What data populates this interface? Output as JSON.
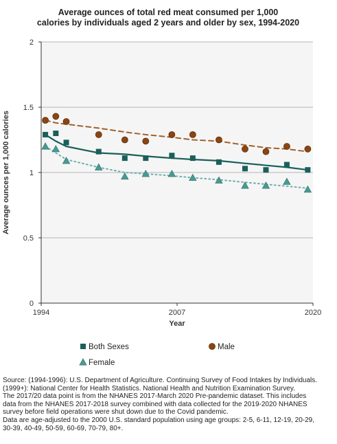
{
  "title_lines": [
    "Average ounces of total red meat consumed per 1,000",
    "calories by individuals aged 2 years and older by sex, 1994-2020"
  ],
  "colors": {
    "background_plot": "#f5f5f5",
    "gridline": "#b5b5b5",
    "axis": "#333333",
    "both_sexes": "#1a5f5a",
    "male_marker": "#8b4513",
    "male_line": "#a0612a",
    "female_marker": "#4a9a94",
    "female_line": "#6fb0aa"
  },
  "chart_data": {
    "type": "line",
    "xlabel": "Year",
    "ylabel": "Average ounces per 1,000 calories",
    "xlim": [
      1994,
      2020
    ],
    "ylim": [
      0,
      2
    ],
    "x_ticks": [
      1994,
      2007,
      2020
    ],
    "y_ticks": [
      0,
      0.5,
      1,
      1.5,
      2
    ],
    "y_tick_labels": [
      "0",
      "0.5",
      "1",
      "1.5",
      "2"
    ],
    "grid": true,
    "legend_position": "bottom",
    "series": [
      {
        "name": "Both Sexes",
        "marker": "square",
        "line_style": "solid",
        "x": [
          1994.4,
          1995.4,
          1996.4,
          1999.5,
          2002.0,
          2004.0,
          2006.5,
          2008.5,
          2011.0,
          2013.5,
          2015.5,
          2017.5,
          2019.5
        ],
        "values": [
          1.29,
          1.3,
          1.23,
          1.16,
          1.11,
          1.11,
          1.13,
          1.11,
          1.08,
          1.03,
          1.02,
          1.06,
          1.02
        ],
        "trend": [
          1.29,
          1.24,
          1.2,
          1.15,
          1.14,
          1.125,
          1.11,
          1.1,
          1.09,
          1.07,
          1.055,
          1.04,
          1.02
        ]
      },
      {
        "name": "Male",
        "marker": "circle",
        "line_style": "dashed",
        "x": [
          1994.4,
          1995.4,
          1996.4,
          1999.5,
          2002.0,
          2004.0,
          2006.5,
          2008.5,
          2011.0,
          2013.5,
          2015.5,
          2017.5,
          2019.5
        ],
        "values": [
          1.4,
          1.43,
          1.39,
          1.29,
          1.25,
          1.24,
          1.29,
          1.29,
          1.25,
          1.18,
          1.16,
          1.2,
          1.18
        ],
        "trend": [
          1.4,
          1.38,
          1.37,
          1.34,
          1.31,
          1.29,
          1.27,
          1.25,
          1.24,
          1.21,
          1.19,
          1.18,
          1.16
        ]
      },
      {
        "name": "Female",
        "marker": "triangle",
        "line_style": "dotted",
        "x": [
          1994.4,
          1995.4,
          1996.4,
          1999.5,
          2002.0,
          2004.0,
          2006.5,
          2008.5,
          2011.0,
          2013.5,
          2015.5,
          2017.5,
          2019.5
        ],
        "values": [
          1.2,
          1.18,
          1.09,
          1.04,
          0.97,
          0.99,
          0.99,
          0.96,
          0.94,
          0.9,
          0.9,
          0.93,
          0.87
        ],
        "trend": [
          1.2,
          1.15,
          1.1,
          1.04,
          1.0,
          0.99,
          0.975,
          0.96,
          0.945,
          0.925,
          0.91,
          0.895,
          0.88
        ]
      }
    ],
    "legend": [
      {
        "series": "Both Sexes",
        "label": "Both Sexes"
      },
      {
        "series": "Male",
        "label": "Male"
      },
      {
        "series": "Female",
        "label": "Female"
      }
    ]
  },
  "source_lines": [
    "Source: (1994-1996): U.S. Department of Agriculture. Continuing Survey of Food Intakes by Individuals.",
    "(1999+): National Center for Health Statistics. National Health and Nutrition Examination Survey.",
    "The 2017/20 data point is from the NHANES 2017-March 2020 Pre-pandemic dataset. This includes",
    "data from the NHANES 2017-2018 survey combined with data collected for the 2019-2020 NHANES",
    "survey before field operations were shut down due to the Covid pandemic.",
    "Data are age-adjusted to the 2000 U.S. standard population using age groups: 2-5, 6-11, 12-19, 20-29,",
    "30-39, 40-49, 50-59, 60-69, 70-79, 80+."
  ]
}
